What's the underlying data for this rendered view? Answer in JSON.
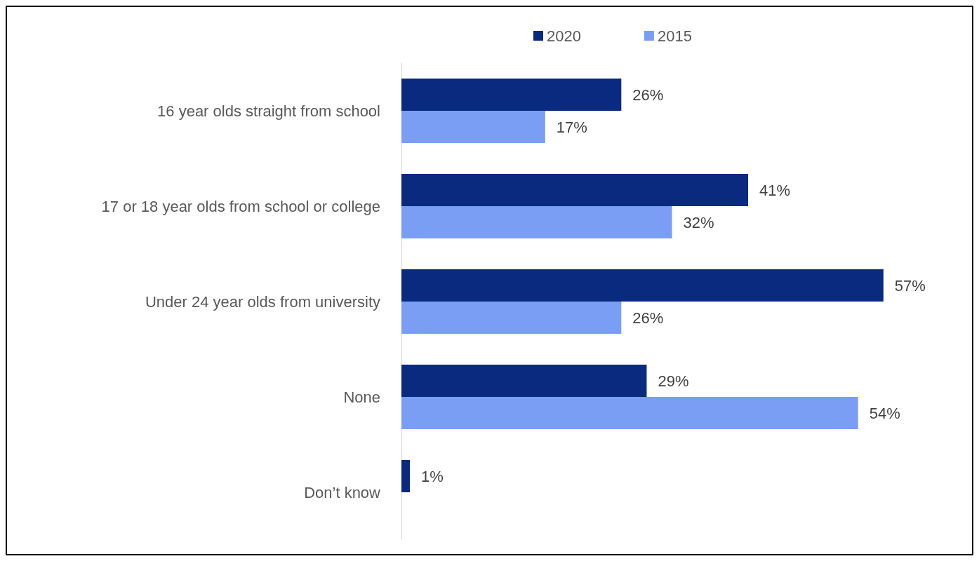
{
  "chart_data": {
    "type": "bar",
    "orientation": "horizontal",
    "categories": [
      "16 year olds straight from school",
      "17 or 18 year olds from school or college",
      "Under 24 year olds from university",
      "None",
      "Don’t know"
    ],
    "series": [
      {
        "name": "2020",
        "color": "#0a2a80",
        "values": [
          26,
          41,
          57,
          29,
          1
        ],
        "value_labels": [
          "26%",
          "41%",
          "57%",
          "29%",
          "1%"
        ]
      },
      {
        "name": "2015",
        "color": "#7b9ef5",
        "values": [
          17,
          32,
          26,
          54,
          null
        ],
        "value_labels": [
          "17%",
          "32%",
          "26%",
          "54%",
          null
        ]
      }
    ],
    "legend": "top"
  }
}
